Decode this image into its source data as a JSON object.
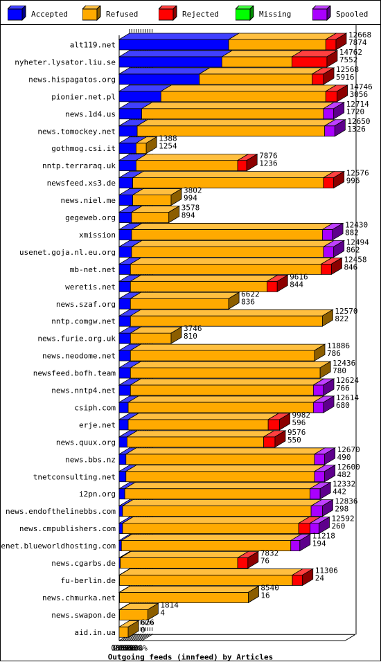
{
  "legend": [
    {
      "name": "Accepted",
      "color": "#0000ff"
    },
    {
      "name": "Refused",
      "color": "#ffaa00"
    },
    {
      "name": "Rejected",
      "color": "#ff0000"
    },
    {
      "name": "Missing",
      "color": "#00ff00"
    },
    {
      "name": "Spooled",
      "color": "#aa00ff"
    }
  ],
  "chart_data": {
    "type": "bar",
    "orientation": "horizontal",
    "stacked": true,
    "xlabel": "Outgoing feeds (innfeed) by Articles",
    "x_ticks": [
      "0%",
      "10%",
      "20%",
      "30%",
      "40%",
      "50%",
      "60%",
      "70%",
      "80%",
      "90%",
      "100%"
    ],
    "xlim": [
      0,
      100
    ],
    "series_names": [
      "Accepted",
      "Refused",
      "Rejected",
      "Missing",
      "Spooled"
    ],
    "rows": [
      {
        "name": "alt119.net",
        "total": "12668",
        "accepted": "7874",
        "pct": [
          48.5,
          43.0,
          4.5,
          0,
          0
        ]
      },
      {
        "name": "nyheter.lysator.liu.se",
        "total": "14762",
        "accepted": "7552",
        "pct": [
          45.5,
          31.0,
          15.5,
          0,
          0
        ]
      },
      {
        "name": "news.hispagatos.org",
        "total": "12568",
        "accepted": "5916",
        "pct": [
          35.5,
          50.0,
          5.0,
          0,
          0
        ]
      },
      {
        "name": "pionier.net.pl",
        "total": "14746",
        "accepted": "3056",
        "pct": [
          18.5,
          73.0,
          5.0,
          0,
          0
        ]
      },
      {
        "name": "news.1d4.us",
        "total": "12714",
        "accepted": "1720",
        "pct": [
          10.0,
          80.5,
          0,
          0,
          4.5
        ]
      },
      {
        "name": "news.tomockey.net",
        "total": "12650",
        "accepted": "1326",
        "pct": [
          8.0,
          83.0,
          0,
          0,
          4.5
        ]
      },
      {
        "name": "gothmog.csi.it",
        "total": "1388",
        "accepted": "1254",
        "pct": [
          7.5,
          4.5,
          0,
          0,
          0
        ]
      },
      {
        "name": "nntp.terraraq.uk",
        "total": "7876",
        "accepted": "1236",
        "pct": [
          7.5,
          45.0,
          4.0,
          0,
          0
        ]
      },
      {
        "name": "newsfeed.xs3.de",
        "total": "12576",
        "accepted": "996",
        "pct": [
          6.0,
          84.5,
          4.5,
          0,
          0
        ]
      },
      {
        "name": "news.niel.me",
        "total": "3802",
        "accepted": "994",
        "pct": [
          6.0,
          17.0,
          0,
          0,
          0
        ]
      },
      {
        "name": "gegeweb.org",
        "total": "3578",
        "accepted": "894",
        "pct": [
          5.5,
          16.5,
          0,
          0,
          0
        ]
      },
      {
        "name": "xmission",
        "total": "12430",
        "accepted": "882",
        "pct": [
          5.5,
          84.5,
          0,
          0,
          4.5
        ]
      },
      {
        "name": "usenet.goja.nl.eu.org",
        "total": "12494",
        "accepted": "862",
        "pct": [
          5.5,
          85.0,
          0,
          0,
          4.5
        ]
      },
      {
        "name": "mb-net.net",
        "total": "12458",
        "accepted": "846",
        "pct": [
          5.0,
          84.5,
          4.5,
          0,
          0
        ]
      },
      {
        "name": "weretis.net",
        "total": "9616",
        "accepted": "844",
        "pct": [
          5.0,
          60.5,
          4.5,
          0,
          0
        ]
      },
      {
        "name": "news.szaf.org",
        "total": "6622",
        "accepted": "836",
        "pct": [
          5.0,
          43.5,
          0,
          0,
          0
        ]
      },
      {
        "name": "nntp.comgw.net",
        "total": "12570",
        "accepted": "822",
        "pct": [
          5.0,
          85.0,
          0,
          0,
          0
        ]
      },
      {
        "name": "news.furie.org.uk",
        "total": "3746",
        "accepted": "810",
        "pct": [
          5.0,
          18.0,
          0,
          0,
          0
        ]
      },
      {
        "name": "news.neodome.net",
        "total": "11886",
        "accepted": "786",
        "pct": [
          5.0,
          81.5,
          0,
          0,
          0
        ]
      },
      {
        "name": "newsfeed.bofh.team",
        "total": "12436",
        "accepted": "780",
        "pct": [
          5.0,
          84.0,
          0,
          0,
          0
        ]
      },
      {
        "name": "news.nntp4.net",
        "total": "12624",
        "accepted": "766",
        "pct": [
          5.0,
          81.0,
          0,
          0,
          4.5
        ]
      },
      {
        "name": "csiph.com",
        "total": "12614",
        "accepted": "680",
        "pct": [
          4.0,
          82.0,
          0,
          0,
          4.5
        ]
      },
      {
        "name": "erje.net",
        "total": "9982",
        "accepted": "596",
        "pct": [
          4.0,
          62.0,
          5.0,
          0,
          0
        ]
      },
      {
        "name": "news.quux.org",
        "total": "9576",
        "accepted": "550",
        "pct": [
          3.5,
          60.5,
          5.0,
          0,
          0
        ]
      },
      {
        "name": "news.bbs.nz",
        "total": "12670",
        "accepted": "490",
        "pct": [
          3.0,
          83.5,
          0,
          0,
          4.5
        ]
      },
      {
        "name": "tnetconsulting.net",
        "total": "12600",
        "accepted": "482",
        "pct": [
          3.0,
          83.5,
          0,
          0,
          4.5
        ]
      },
      {
        "name": "i2pn.org",
        "total": "12332",
        "accepted": "442",
        "pct": [
          2.5,
          82.0,
          0,
          0,
          4.5
        ]
      },
      {
        "name": "news.endofthelinebbs.com",
        "total": "12836",
        "accepted": "298",
        "pct": [
          1.5,
          83.5,
          0,
          0,
          5.0
        ]
      },
      {
        "name": "news.cmpublishers.com",
        "total": "12592",
        "accepted": "260",
        "pct": [
          1.5,
          78.0,
          5.0,
          0,
          4.0
        ]
      },
      {
        "name": "usenet.blueworldhosting.com",
        "total": "11218",
        "accepted": "194",
        "pct": [
          1.0,
          75.0,
          0,
          0,
          4.0
        ]
      },
      {
        "name": "news.cgarbs.de",
        "total": "7832",
        "accepted": "76",
        "pct": [
          0.5,
          52.0,
          4.5,
          0,
          0
        ]
      },
      {
        "name": "fu-berlin.de",
        "total": "11306",
        "accepted": "24",
        "pct": [
          0.2,
          76.5,
          4.5,
          0,
          0
        ]
      },
      {
        "name": "news.chmurka.net",
        "total": "8540",
        "accepted": "16",
        "pct": [
          0.1,
          57.0,
          0,
          0,
          0
        ]
      },
      {
        "name": "news.swapon.de",
        "total": "1814",
        "accepted": "4",
        "pct": [
          0.1,
          12.5,
          0,
          0,
          0
        ]
      },
      {
        "name": "aid.in.ua",
        "total": "626",
        "accepted": "0",
        "pct": [
          0,
          4.0,
          0,
          0,
          0
        ]
      }
    ]
  }
}
